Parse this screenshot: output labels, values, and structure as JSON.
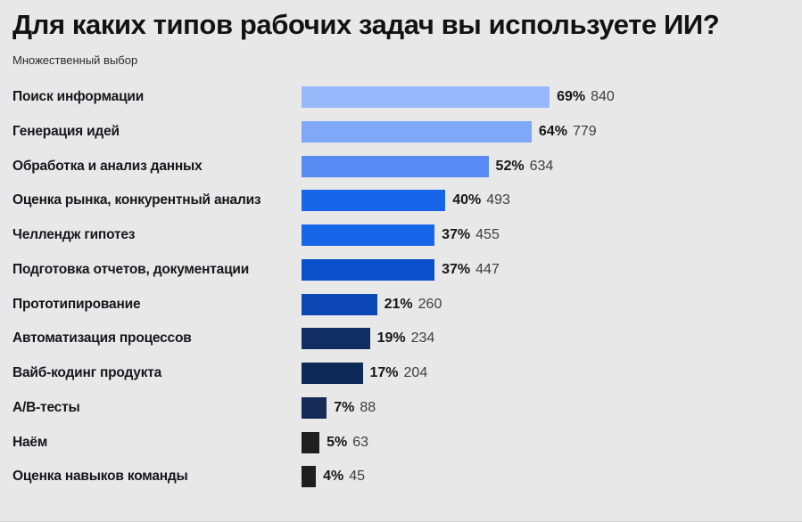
{
  "page": {
    "title": "Для каких типов рабочих задач вы используете ИИ?",
    "subtitle": "Множественный выбор",
    "background_color": "#e8e8e8"
  },
  "chart_data": {
    "type": "bar",
    "orientation": "horizontal",
    "title": "Для каких типов рабочих задач вы используете ИИ?",
    "subtitle": "Множественный выбор",
    "categories": [
      "Поиск информации",
      "Генерация идей",
      "Обработка и анализ данных",
      "Оценка рынка, конкурентный анализ",
      "Челлендж гипотез",
      "Подготовка отчетов, документации",
      "Прототипирование",
      "Автоматизация  процессов",
      "Вайб-кодинг продукта",
      "A/B-тесты",
      "Наём",
      "Оценка навыков команды"
    ],
    "series": [
      {
        "name": "percent",
        "values": [
          69,
          64,
          52,
          40,
          37,
          37,
          21,
          19,
          17,
          7,
          5,
          4
        ]
      },
      {
        "name": "count",
        "values": [
          840,
          779,
          634,
          493,
          455,
          447,
          260,
          234,
          204,
          88,
          63,
          45
        ]
      }
    ],
    "value_label_format": "{percent}% {count}",
    "xlim": [
      0,
      100
    ],
    "grid": false,
    "legend_position": "none",
    "bar_colors": [
      "#97b8fa",
      "#7fa8f8",
      "#578af3",
      "#1765e9",
      "#1765e9",
      "#0b50ca",
      "#0d47b5",
      "#102e62",
      "#0d2a57",
      "#152a56",
      "#1f1f1f",
      "#1f1f1f"
    ]
  }
}
